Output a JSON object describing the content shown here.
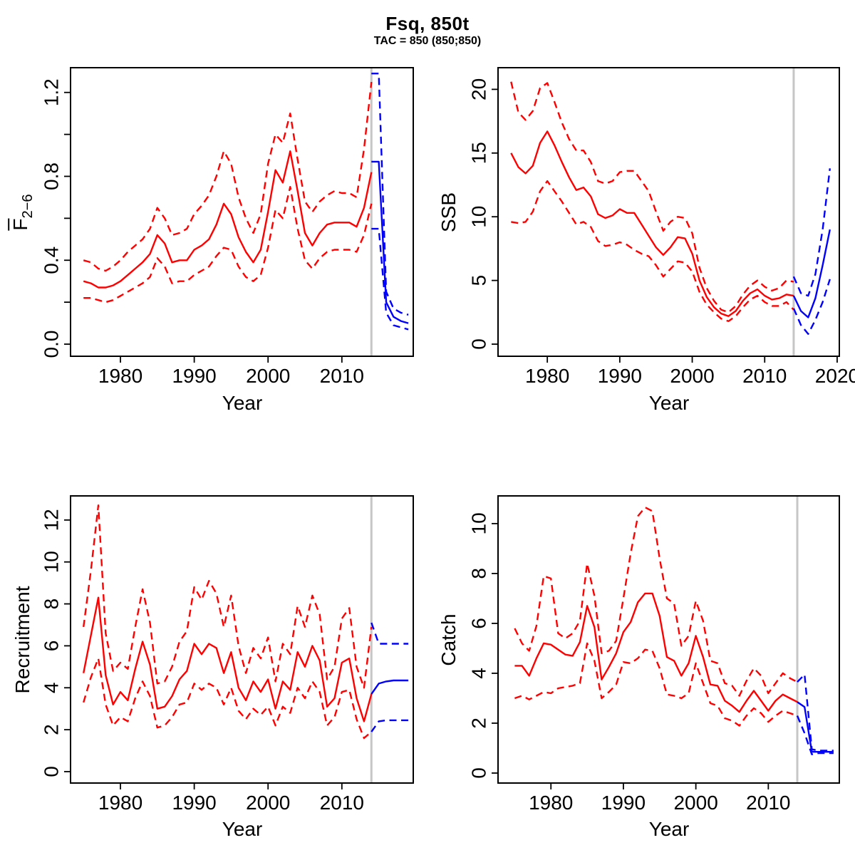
{
  "title": "Fsq, 850t",
  "subtitle": "TAC = 850 (850;850)",
  "colors": {
    "history_line": "#FF0000",
    "forecast_line": "#0000FF",
    "divider_line": "#C6C6C6",
    "axis": "#000000",
    "background": "#FFFFFF"
  },
  "chart_data": [
    {
      "type": "line",
      "id": "f",
      "xlabel": "Year",
      "ylabel": "F2-6",
      "ylabel_main": "F",
      "ylabel_sub": "2−6",
      "grid": false,
      "legend": false,
      "divider_year": 2014,
      "xlim": [
        1973.24,
        2019.67
      ],
      "ylim": [
        -0.0577,
        1.318
      ],
      "xticks": [
        1980,
        1990,
        2000,
        2010
      ],
      "xtick_labels": [
        "1980",
        "1990",
        "2000",
        "2010"
      ],
      "yticks": [
        0,
        0.4,
        0.8,
        1.2
      ],
      "ytick_labels": [
        "0.0",
        "0.4",
        "0.8",
        "1.2"
      ],
      "yticks_minor": [
        0.2,
        0.6,
        1.0
      ],
      "years": [
        1975,
        1976,
        1977,
        1978,
        1979,
        1980,
        1981,
        1982,
        1983,
        1984,
        1985,
        1986,
        1987,
        1988,
        1989,
        1990,
        1991,
        1992,
        1993,
        1994,
        1995,
        1996,
        1997,
        1998,
        1999,
        2000,
        2001,
        2002,
        2003,
        2004,
        2005,
        2006,
        2007,
        2008,
        2009,
        2010,
        2011,
        2012,
        2013,
        2014
      ],
      "forecast_years": [
        2014,
        2015,
        2016,
        2017,
        2018,
        2019
      ],
      "series": [
        {
          "name": "estimate",
          "role": "history",
          "style": "solid",
          "color": "#FF0000",
          "values": [
            0.3,
            0.29,
            0.27,
            0.27,
            0.28,
            0.3,
            0.33,
            0.36,
            0.39,
            0.43,
            0.52,
            0.48,
            0.39,
            0.4,
            0.4,
            0.45,
            0.47,
            0.5,
            0.57,
            0.67,
            0.62,
            0.51,
            0.44,
            0.39,
            0.45,
            0.63,
            0.83,
            0.77,
            0.92,
            0.73,
            0.53,
            0.47,
            0.53,
            0.57,
            0.58,
            0.58,
            0.58,
            0.56,
            0.65,
            0.82
          ]
        },
        {
          "name": "ci-upper",
          "role": "history",
          "style": "dashed",
          "color": "#FF0000",
          "values": [
            0.4,
            0.39,
            0.36,
            0.35,
            0.37,
            0.4,
            0.44,
            0.47,
            0.5,
            0.55,
            0.65,
            0.6,
            0.52,
            0.53,
            0.55,
            0.62,
            0.66,
            0.71,
            0.8,
            0.92,
            0.86,
            0.7,
            0.6,
            0.53,
            0.62,
            0.86,
            1.0,
            0.96,
            1.1,
            0.88,
            0.68,
            0.63,
            0.68,
            0.71,
            0.73,
            0.72,
            0.72,
            0.7,
            0.93,
            1.25
          ]
        },
        {
          "name": "ci-lower",
          "role": "history",
          "style": "dashed",
          "color": "#FF0000",
          "values": [
            0.22,
            0.22,
            0.21,
            0.2,
            0.21,
            0.23,
            0.25,
            0.27,
            0.29,
            0.32,
            0.41,
            0.37,
            0.29,
            0.3,
            0.3,
            0.33,
            0.35,
            0.37,
            0.42,
            0.46,
            0.45,
            0.37,
            0.32,
            0.3,
            0.33,
            0.46,
            0.64,
            0.6,
            0.75,
            0.55,
            0.4,
            0.36,
            0.41,
            0.44,
            0.45,
            0.45,
            0.45,
            0.44,
            0.52,
            0.67
          ]
        },
        {
          "name": "forecast",
          "role": "forecast",
          "style": "solid",
          "color": "#0000FF",
          "values": [
            0.87,
            0.87,
            0.2,
            0.13,
            0.11,
            0.1
          ]
        },
        {
          "name": "forecast-ci-upper",
          "role": "forecast",
          "style": "dashed",
          "color": "#0000FF",
          "values": [
            1.29,
            1.29,
            0.25,
            0.17,
            0.15,
            0.14
          ]
        },
        {
          "name": "forecast-ci-lower",
          "role": "forecast",
          "style": "dashed",
          "color": "#0000FF",
          "values": [
            0.55,
            0.55,
            0.15,
            0.09,
            0.08,
            0.07
          ]
        }
      ]
    },
    {
      "type": "line",
      "id": "ssb",
      "xlabel": "Year",
      "ylabel": "SSB",
      "grid": false,
      "legend": false,
      "divider_year": 2014,
      "xlim": [
        1973.2,
        2020.3
      ],
      "ylim": [
        -0.95,
        21.7
      ],
      "xticks": [
        1980,
        1990,
        2000,
        2010,
        2020
      ],
      "xtick_labels": [
        "1980",
        "1990",
        "2000",
        "2010",
        "2020"
      ],
      "yticks": [
        0,
        5,
        10,
        15,
        20
      ],
      "ytick_labels": [
        "0",
        "5",
        "10",
        "15",
        "20"
      ],
      "yticks_minor": [],
      "years": [
        1975,
        1976,
        1977,
        1978,
        1979,
        1980,
        1981,
        1982,
        1983,
        1984,
        1985,
        1986,
        1987,
        1988,
        1989,
        1990,
        1991,
        1992,
        1993,
        1994,
        1995,
        1996,
        1997,
        1998,
        1999,
        2000,
        2001,
        2002,
        2003,
        2004,
        2005,
        2006,
        2007,
        2008,
        2009,
        2010,
        2011,
        2012,
        2013,
        2014
      ],
      "forecast_years": [
        2014,
        2015,
        2016,
        2017,
        2018,
        2019
      ],
      "series": [
        {
          "name": "estimate",
          "role": "history",
          "style": "solid",
          "color": "#FF0000",
          "values": [
            15.0,
            13.9,
            13.4,
            14.0,
            15.8,
            16.7,
            15.6,
            14.3,
            13.1,
            12.1,
            12.3,
            11.6,
            10.2,
            9.9,
            10.1,
            10.6,
            10.3,
            10.3,
            9.4,
            8.5,
            7.6,
            7.0,
            7.6,
            8.4,
            8.3,
            7.1,
            5.0,
            3.7,
            2.9,
            2.4,
            2.2,
            2.6,
            3.4,
            4.0,
            4.3,
            3.8,
            3.5,
            3.6,
            3.9,
            3.8
          ]
        },
        {
          "name": "ci-upper",
          "role": "history",
          "style": "dashed",
          "color": "#FF0000",
          "values": [
            20.6,
            18.2,
            17.6,
            18.3,
            20.1,
            20.5,
            19.0,
            17.4,
            16.1,
            15.2,
            15.2,
            14.3,
            12.8,
            12.6,
            12.8,
            13.5,
            13.6,
            13.6,
            12.8,
            12.0,
            10.4,
            8.9,
            9.6,
            10.0,
            9.9,
            8.7,
            6.0,
            4.4,
            3.4,
            2.7,
            2.5,
            3.0,
            3.9,
            4.6,
            5.0,
            4.5,
            4.2,
            4.4,
            5.0,
            4.9
          ]
        },
        {
          "name": "ci-lower",
          "role": "history",
          "style": "dashed",
          "color": "#FF0000",
          "values": [
            9.6,
            9.5,
            9.6,
            10.4,
            12.0,
            12.8,
            12.0,
            11.2,
            10.3,
            9.4,
            9.6,
            9.2,
            8.1,
            7.7,
            7.8,
            8.0,
            7.8,
            7.4,
            7.1,
            6.9,
            6.2,
            5.3,
            5.9,
            6.5,
            6.4,
            5.7,
            4.1,
            3.1,
            2.5,
            2.0,
            1.8,
            2.2,
            2.9,
            3.5,
            3.8,
            3.3,
            3.0,
            3.0,
            3.3,
            2.7
          ]
        },
        {
          "name": "forecast",
          "role": "forecast",
          "style": "solid",
          "color": "#0000FF",
          "values": [
            3.8,
            2.6,
            2.1,
            3.6,
            6.2,
            9.0
          ]
        },
        {
          "name": "forecast-ci-upper",
          "role": "forecast",
          "style": "dashed",
          "color": "#0000FF",
          "values": [
            5.3,
            4.0,
            3.8,
            5.5,
            9.0,
            13.8
          ]
        },
        {
          "name": "forecast-ci-lower",
          "role": "forecast",
          "style": "dashed",
          "color": "#0000FF",
          "values": [
            2.8,
            1.5,
            0.8,
            1.9,
            3.3,
            5.1
          ]
        }
      ]
    },
    {
      "type": "line",
      "id": "recruitment",
      "xlabel": "Year",
      "ylabel": "Recruitment",
      "grid": false,
      "legend": false,
      "divider_year": 2014,
      "xlim": [
        1973.24,
        2019.67
      ],
      "ylim": [
        -0.544,
        13.15
      ],
      "xticks": [
        1980,
        1990,
        2000,
        2010
      ],
      "xtick_labels": [
        "1980",
        "1990",
        "2000",
        "2010"
      ],
      "yticks": [
        0,
        2,
        4,
        6,
        8,
        10,
        12
      ],
      "ytick_labels": [
        "0",
        "2",
        "4",
        "6",
        "8",
        "10",
        "12"
      ],
      "yticks_minor": [],
      "years": [
        1975,
        1976,
        1977,
        1978,
        1979,
        1980,
        1981,
        1982,
        1983,
        1984,
        1985,
        1986,
        1987,
        1988,
        1989,
        1990,
        1991,
        1992,
        1993,
        1994,
        1995,
        1996,
        1997,
        1998,
        1999,
        2000,
        2001,
        2002,
        2003,
        2004,
        2005,
        2006,
        2007,
        2008,
        2009,
        2010,
        2011,
        2012,
        2013,
        2014
      ],
      "forecast_years": [
        2014,
        2015,
        2016,
        2017,
        2018,
        2019
      ],
      "series": [
        {
          "name": "estimate",
          "role": "history",
          "style": "solid",
          "color": "#FF0000",
          "values": [
            4.7,
            6.5,
            8.3,
            4.6,
            3.2,
            3.8,
            3.4,
            4.9,
            6.2,
            5.1,
            3.0,
            3.1,
            3.6,
            4.4,
            4.8,
            6.1,
            5.6,
            6.1,
            5.9,
            4.7,
            5.7,
            4.0,
            3.4,
            4.3,
            3.8,
            4.4,
            3.0,
            4.3,
            3.9,
            5.7,
            5.0,
            6.0,
            5.3,
            3.1,
            3.5,
            5.2,
            5.4,
            3.5,
            2.4,
            3.7
          ]
        },
        {
          "name": "ci-upper",
          "role": "history",
          "style": "dashed",
          "color": "#FF0000",
          "values": [
            6.9,
            9.6,
            12.7,
            6.6,
            4.8,
            5.2,
            4.9,
            6.9,
            8.7,
            7.1,
            4.2,
            4.3,
            5.0,
            6.2,
            6.7,
            8.8,
            8.2,
            9.1,
            8.5,
            6.9,
            8.4,
            6.0,
            4.7,
            5.9,
            5.4,
            6.4,
            4.3,
            6.1,
            5.6,
            7.9,
            6.9,
            8.4,
            7.5,
            4.4,
            5.0,
            7.3,
            7.8,
            5.0,
            4.0,
            6.9
          ]
        },
        {
          "name": "ci-lower",
          "role": "history",
          "style": "dashed",
          "color": "#FF0000",
          "values": [
            3.3,
            4.5,
            5.4,
            3.2,
            2.2,
            2.6,
            2.4,
            3.5,
            4.3,
            3.6,
            2.1,
            2.2,
            2.6,
            3.2,
            3.3,
            4.2,
            3.9,
            4.2,
            4.0,
            3.2,
            4.0,
            2.9,
            2.5,
            3.0,
            2.7,
            3.1,
            2.2,
            3.1,
            2.8,
            4.0,
            3.5,
            4.3,
            3.8,
            2.2,
            2.6,
            3.8,
            3.9,
            2.5,
            1.6,
            1.9
          ]
        },
        {
          "name": "forecast",
          "role": "forecast",
          "style": "solid",
          "color": "#0000FF",
          "values": [
            3.7,
            4.2,
            4.3,
            4.35,
            4.35,
            4.35
          ]
        },
        {
          "name": "forecast-ci-upper",
          "role": "forecast",
          "style": "dashed",
          "color": "#0000FF",
          "values": [
            7.1,
            6.1,
            6.1,
            6.1,
            6.1,
            6.1
          ]
        },
        {
          "name": "forecast-ci-lower",
          "role": "forecast",
          "style": "dashed",
          "color": "#0000FF",
          "values": [
            1.9,
            2.4,
            2.45,
            2.45,
            2.45,
            2.45
          ]
        }
      ]
    },
    {
      "type": "line",
      "id": "catch",
      "xlabel": "Year",
      "ylabel": "Catch",
      "grid": false,
      "legend": false,
      "divider_year": 2014,
      "xlim": [
        1972.7,
        2019.8
      ],
      "ylim": [
        -0.4,
        11.11
      ],
      "xticks": [
        1980,
        1990,
        2000,
        2010
      ],
      "xtick_labels": [
        "1980",
        "1990",
        "2000",
        "2010"
      ],
      "yticks": [
        0,
        2,
        4,
        6,
        8,
        10
      ],
      "ytick_labels": [
        "0",
        "2",
        "4",
        "6",
        "8",
        "10"
      ],
      "yticks_minor": [],
      "years": [
        1975,
        1976,
        1977,
        1978,
        1979,
        1980,
        1981,
        1982,
        1983,
        1984,
        1985,
        1986,
        1987,
        1988,
        1989,
        1990,
        1991,
        1992,
        1993,
        1994,
        1995,
        1996,
        1997,
        1998,
        1999,
        2000,
        2001,
        2002,
        2003,
        2004,
        2005,
        2006,
        2007,
        2008,
        2009,
        2010,
        2011,
        2012,
        2013,
        2014
      ],
      "forecast_years": [
        2014,
        2015,
        2016,
        2017,
        2018,
        2019
      ],
      "series": [
        {
          "name": "estimate",
          "role": "history",
          "style": "solid",
          "color": "#FF0000",
          "values": [
            4.3,
            4.3,
            3.9,
            4.6,
            5.2,
            5.15,
            4.95,
            4.75,
            4.7,
            5.25,
            6.7,
            5.85,
            3.75,
            4.25,
            4.8,
            5.65,
            6.05,
            6.85,
            7.2,
            7.2,
            6.3,
            4.65,
            4.5,
            3.9,
            4.4,
            5.5,
            4.65,
            3.55,
            3.5,
            2.9,
            2.7,
            2.45,
            2.9,
            3.3,
            2.9,
            2.5,
            2.9,
            3.15,
            3.0,
            2.85
          ]
        },
        {
          "name": "ci-upper",
          "role": "history",
          "style": "dashed",
          "color": "#FF0000",
          "values": [
            5.8,
            5.2,
            4.9,
            5.9,
            7.9,
            7.8,
            5.6,
            5.4,
            5.6,
            6.1,
            8.4,
            7.1,
            4.8,
            4.9,
            5.3,
            7.0,
            8.8,
            10.3,
            10.65,
            10.5,
            8.6,
            7.0,
            6.8,
            5.1,
            5.5,
            6.9,
            6.1,
            4.5,
            4.4,
            3.6,
            3.5,
            3.1,
            3.7,
            4.2,
            3.9,
            3.2,
            3.6,
            4.0,
            3.8,
            3.65
          ]
        },
        {
          "name": "ci-lower",
          "role": "history",
          "style": "dashed",
          "color": "#FF0000",
          "values": [
            3.0,
            3.1,
            2.95,
            3.1,
            3.25,
            3.2,
            3.4,
            3.45,
            3.5,
            3.6,
            5.2,
            4.5,
            3.0,
            3.25,
            3.55,
            4.45,
            4.4,
            4.6,
            4.95,
            4.9,
            4.2,
            3.15,
            3.1,
            3.0,
            3.2,
            4.4,
            3.6,
            2.8,
            2.7,
            2.2,
            2.1,
            1.9,
            2.3,
            2.6,
            2.4,
            2.05,
            2.3,
            2.5,
            2.4,
            2.3
          ]
        },
        {
          "name": "forecast",
          "role": "forecast",
          "style": "solid",
          "color": "#0000FF",
          "values": [
            2.85,
            2.65,
            0.85,
            0.85,
            0.85,
            0.85
          ]
        },
        {
          "name": "forecast-ci-upper",
          "role": "forecast",
          "style": "dashed",
          "color": "#0000FF",
          "values": [
            3.65,
            3.95,
            0.95,
            0.9,
            0.9,
            0.9
          ]
        },
        {
          "name": "forecast-ci-lower",
          "role": "forecast",
          "style": "dashed",
          "color": "#0000FF",
          "values": [
            2.3,
            1.6,
            0.75,
            0.8,
            0.8,
            0.8
          ]
        }
      ]
    }
  ]
}
